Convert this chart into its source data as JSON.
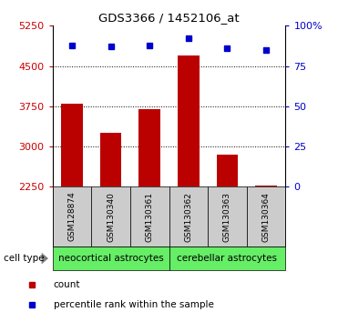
{
  "title": "GDS3366 / 1452106_at",
  "samples": [
    "GSM128874",
    "GSM130340",
    "GSM130361",
    "GSM130362",
    "GSM130363",
    "GSM130364"
  ],
  "counts": [
    3800,
    3250,
    3700,
    4700,
    2850,
    2270
  ],
  "percentiles": [
    88,
    87,
    88,
    92,
    86,
    85
  ],
  "ymin": 2250,
  "ymax": 5250,
  "yticks": [
    2250,
    3000,
    3750,
    4500,
    5250
  ],
  "right_yticks": [
    0,
    25,
    50,
    75,
    100
  ],
  "bar_color": "#bb0000",
  "square_color": "#0000cc",
  "bar_width": 0.55,
  "cell_types": [
    "neocortical astrocytes",
    "cerebellar astrocytes"
  ],
  "cell_type_ranges": [
    [
      0,
      3
    ],
    [
      3,
      6
    ]
  ],
  "cell_type_color": "#66ee66",
  "group_label": "cell type",
  "legend_count_label": "count",
  "legend_pct_label": "percentile rank within the sample",
  "tick_label_color_left": "#cc0000",
  "tick_label_color_right": "#0000cc",
  "sample_box_color": "#cccccc",
  "title_fontsize": 9.5
}
